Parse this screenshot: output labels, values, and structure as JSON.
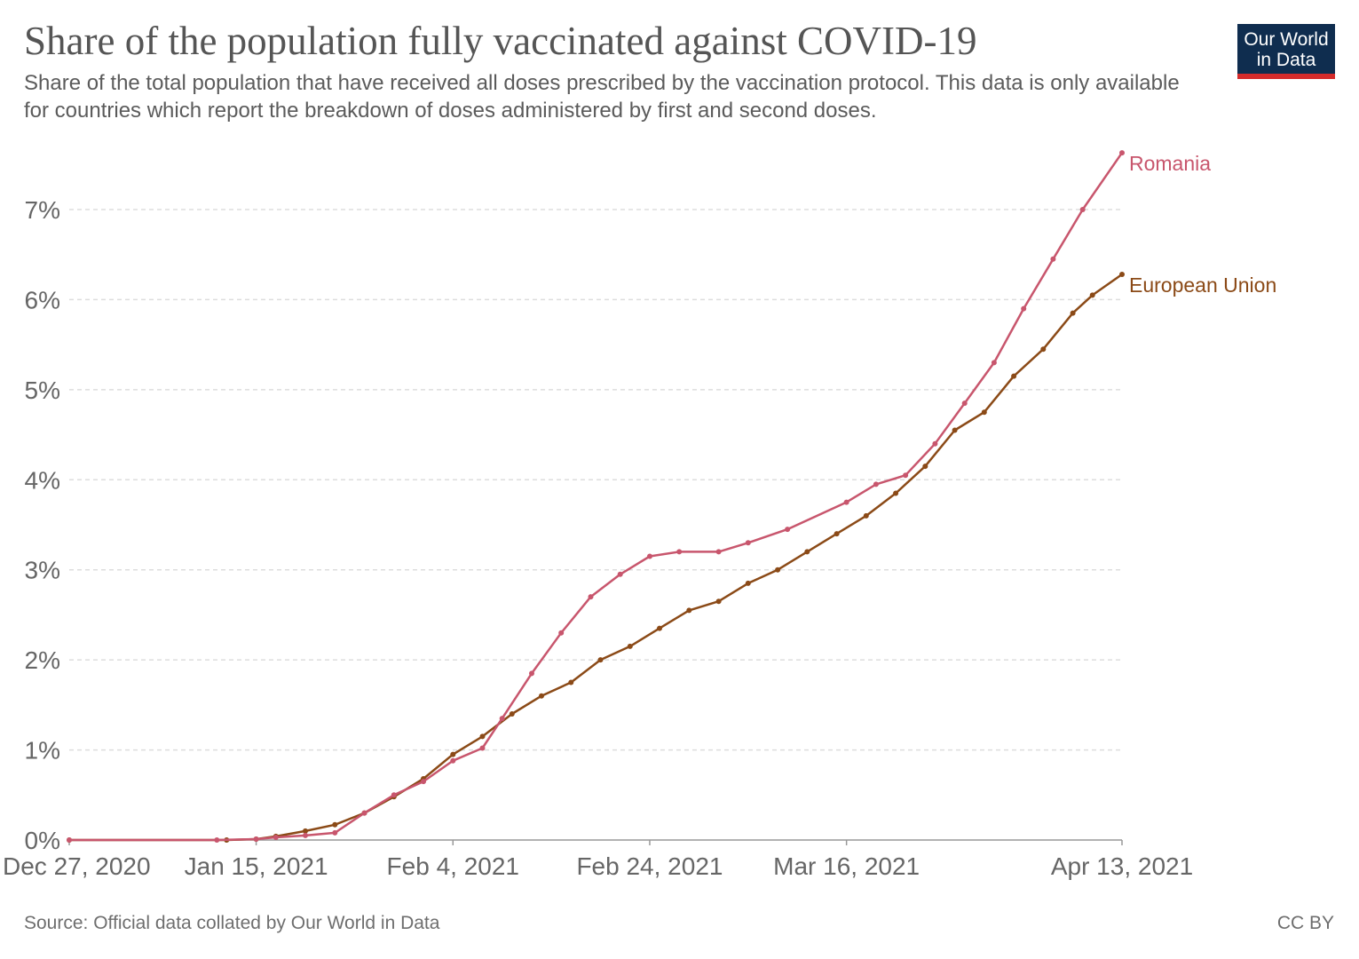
{
  "header": {
    "title": "Share of the population fully vaccinated against COVID-19",
    "subtitle": "Share of the total population that have received all doses prescribed by the vaccination protocol. This data is only available for countries which report the breakdown of doses administered by first and second doses.",
    "logo_line1": "Our World",
    "logo_line2": "in Data"
  },
  "footer": {
    "source": "Source: Official data collated by Our World in Data",
    "license": "CC BY"
  },
  "chart_data": {
    "type": "line",
    "title": "Share of the population fully vaccinated against COVID-19",
    "x_ticks": [
      "Dec 27, 2020",
      "Jan 15, 2021",
      "Feb 4, 2021",
      "Feb 24, 2021",
      "Mar 16, 2021",
      "Apr 13, 2021"
    ],
    "y_ticks": [
      "0%",
      "1%",
      "2%",
      "3%",
      "4%",
      "5%",
      "6%",
      "7%"
    ],
    "xlim": [
      "2020-12-27",
      "2021-04-13"
    ],
    "ylim": [
      0,
      7.7
    ],
    "grid": "horizontal dashed",
    "legend": "inline labels at line ends",
    "series": [
      {
        "name": "Romania",
        "color": "#c8566d",
        "points": [
          [
            "2020-12-27",
            0
          ],
          [
            "2021-01-11",
            0
          ],
          [
            "2021-01-15",
            0.01
          ],
          [
            "2021-01-17",
            0.03
          ],
          [
            "2021-01-20",
            0.05
          ],
          [
            "2021-01-23",
            0.08
          ],
          [
            "2021-01-26",
            0.3
          ],
          [
            "2021-01-29",
            0.5
          ],
          [
            "2021-02-01",
            0.65
          ],
          [
            "2021-02-04",
            0.88
          ],
          [
            "2021-02-07",
            1.02
          ],
          [
            "2021-02-09",
            1.35
          ],
          [
            "2021-02-12",
            1.85
          ],
          [
            "2021-02-15",
            2.3
          ],
          [
            "2021-02-18",
            2.7
          ],
          [
            "2021-02-21",
            2.95
          ],
          [
            "2021-02-24",
            3.15
          ],
          [
            "2021-02-27",
            3.2
          ],
          [
            "2021-03-03",
            3.2
          ],
          [
            "2021-03-06",
            3.3
          ],
          [
            "2021-03-10",
            3.45
          ],
          [
            "2021-03-16",
            3.75
          ],
          [
            "2021-03-19",
            3.95
          ],
          [
            "2021-03-22",
            4.05
          ],
          [
            "2021-03-25",
            4.4
          ],
          [
            "2021-03-28",
            4.85
          ],
          [
            "2021-03-31",
            5.3
          ],
          [
            "2021-04-03",
            5.9
          ],
          [
            "2021-04-06",
            6.45
          ],
          [
            "2021-04-09",
            7.0
          ],
          [
            "2021-04-13",
            7.63
          ]
        ]
      },
      {
        "name": "European Union",
        "color": "#8b4a17",
        "points": [
          [
            "2020-12-27",
            0
          ],
          [
            "2021-01-12",
            0
          ],
          [
            "2021-01-15",
            0.01
          ],
          [
            "2021-01-17",
            0.04
          ],
          [
            "2021-01-20",
            0.1
          ],
          [
            "2021-01-23",
            0.17
          ],
          [
            "2021-01-26",
            0.3
          ],
          [
            "2021-01-29",
            0.48
          ],
          [
            "2021-02-01",
            0.68
          ],
          [
            "2021-02-04",
            0.95
          ],
          [
            "2021-02-07",
            1.15
          ],
          [
            "2021-02-10",
            1.4
          ],
          [
            "2021-02-13",
            1.6
          ],
          [
            "2021-02-16",
            1.75
          ],
          [
            "2021-02-19",
            2.0
          ],
          [
            "2021-02-22",
            2.15
          ],
          [
            "2021-02-25",
            2.35
          ],
          [
            "2021-02-28",
            2.55
          ],
          [
            "2021-03-03",
            2.65
          ],
          [
            "2021-03-06",
            2.85
          ],
          [
            "2021-03-09",
            3.0
          ],
          [
            "2021-03-12",
            3.2
          ],
          [
            "2021-03-15",
            3.4
          ],
          [
            "2021-03-18",
            3.6
          ],
          [
            "2021-03-21",
            3.85
          ],
          [
            "2021-03-24",
            4.15
          ],
          [
            "2021-03-27",
            4.55
          ],
          [
            "2021-03-30",
            4.75
          ],
          [
            "2021-04-02",
            5.15
          ],
          [
            "2021-04-05",
            5.45
          ],
          [
            "2021-04-08",
            5.85
          ],
          [
            "2021-04-10",
            6.05
          ],
          [
            "2021-04-13",
            6.28
          ]
        ]
      }
    ]
  }
}
